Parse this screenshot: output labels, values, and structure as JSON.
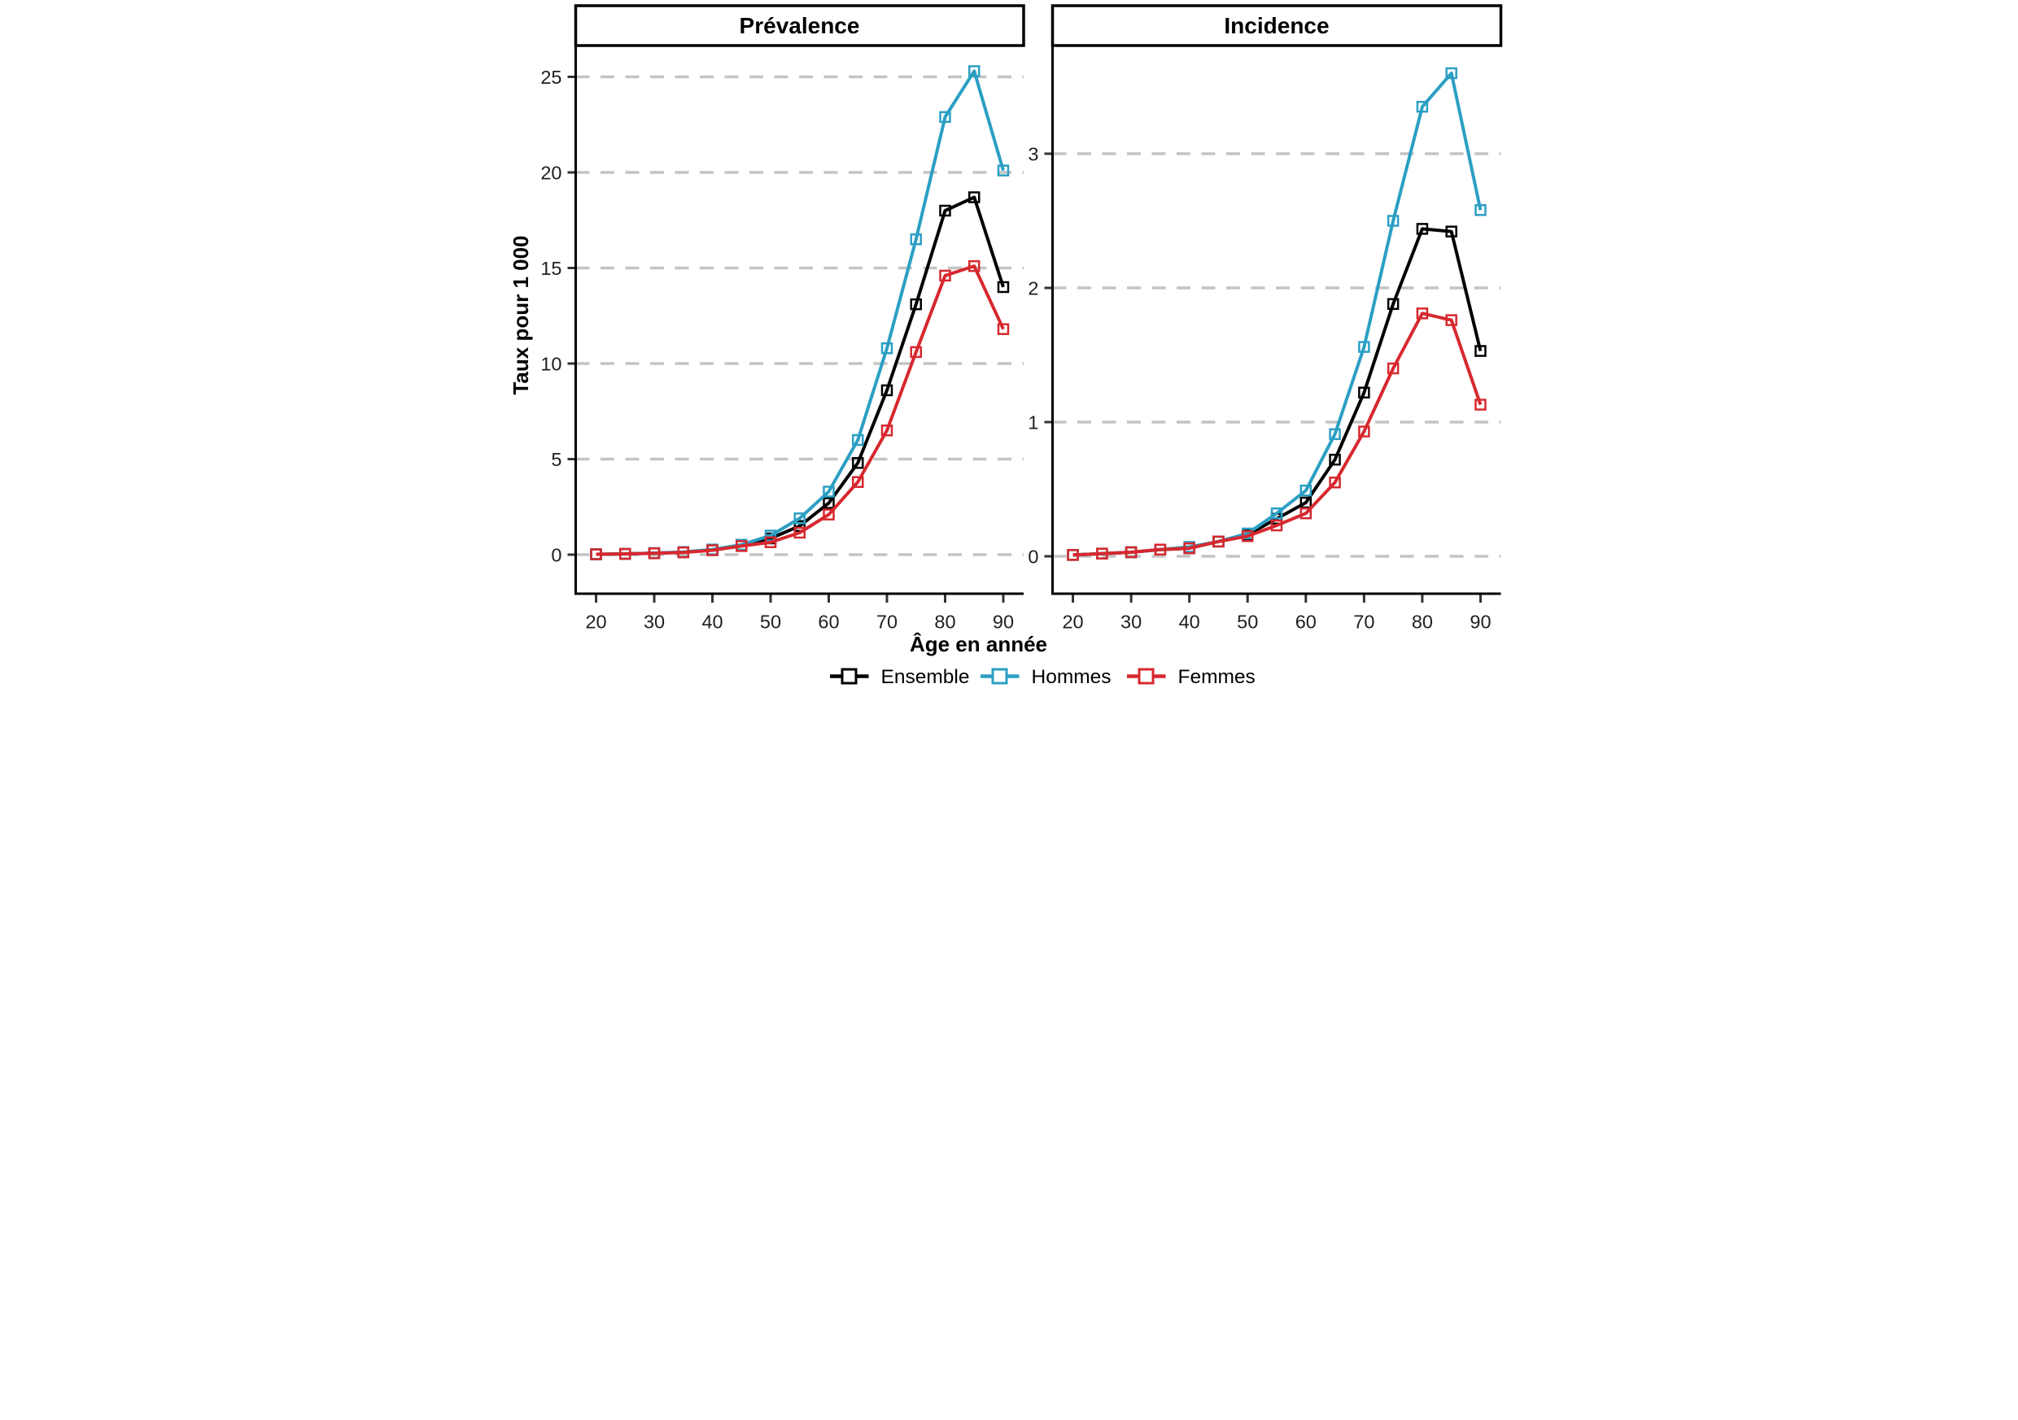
{
  "figure": {
    "background": "#ffffff",
    "gridline_color": "#c4c4c4",
    "axis_line_color": "#000000",
    "tick_color": "#333333"
  },
  "axes": {
    "x_label": "Âge en année",
    "y_label": "Taux pour 1 000",
    "x_ticks": [
      20,
      30,
      40,
      50,
      60,
      70,
      80,
      90
    ],
    "left_y_ticks": [
      0,
      5,
      10,
      15,
      20,
      25
    ],
    "right_y_ticks": [
      0,
      1,
      2,
      3
    ]
  },
  "legend": {
    "entries": [
      {
        "label": "Ensemble",
        "color": "#000000"
      },
      {
        "label": "Hommes",
        "color": "#2B9FC3"
      },
      {
        "label": "Femmes",
        "color": "#D7282E"
      }
    ]
  },
  "chart_data": [
    {
      "type": "line",
      "title": "Prévalence",
      "xlabel": "Âge en année",
      "ylabel": "Taux pour 1 000",
      "x": [
        20,
        25,
        30,
        35,
        40,
        45,
        50,
        55,
        60,
        65,
        70,
        75,
        80,
        85,
        90
      ],
      "ylim": [
        0,
        26.6
      ],
      "grid": "horizontal-dashed",
      "series": [
        {
          "name": "Ensemble",
          "color": "#000000",
          "values": [
            0.02,
            0.04,
            0.08,
            0.13,
            0.25,
            0.5,
            0.85,
            1.5,
            2.7,
            4.8,
            8.6,
            13.1,
            18.0,
            18.7,
            14.0
          ]
        },
        {
          "name": "Hommes",
          "color": "#2B9FC3",
          "values": [
            0.02,
            0.04,
            0.08,
            0.14,
            0.27,
            0.52,
            1.0,
            1.9,
            3.3,
            6.0,
            10.8,
            16.5,
            22.9,
            25.3,
            20.1
          ]
        },
        {
          "name": "Femmes",
          "color": "#D7282E",
          "values": [
            0.02,
            0.04,
            0.07,
            0.12,
            0.23,
            0.45,
            0.65,
            1.15,
            2.1,
            3.8,
            6.5,
            10.6,
            14.6,
            15.1,
            11.8
          ]
        }
      ]
    },
    {
      "type": "line",
      "title": "Incidence",
      "xlabel": "Âge en année",
      "ylabel": "Taux pour 1 000",
      "x": [
        20,
        25,
        30,
        35,
        40,
        45,
        50,
        55,
        60,
        65,
        70,
        75,
        80,
        85,
        90
      ],
      "ylim": [
        0,
        3.8
      ],
      "grid": "horizontal-dashed",
      "series": [
        {
          "name": "Ensemble",
          "color": "#000000",
          "values": [
            0.01,
            0.02,
            0.03,
            0.05,
            0.06,
            0.11,
            0.16,
            0.28,
            0.4,
            0.72,
            1.22,
            1.88,
            2.44,
            2.42,
            1.53
          ]
        },
        {
          "name": "Hommes",
          "color": "#2B9FC3",
          "values": [
            0.01,
            0.02,
            0.03,
            0.05,
            0.07,
            0.11,
            0.17,
            0.32,
            0.49,
            0.91,
            1.56,
            2.5,
            3.35,
            3.6,
            2.58
          ]
        },
        {
          "name": "Femmes",
          "color": "#D7282E",
          "values": [
            0.01,
            0.02,
            0.03,
            0.05,
            0.06,
            0.11,
            0.15,
            0.23,
            0.32,
            0.55,
            0.93,
            1.4,
            1.81,
            1.76,
            1.13
          ]
        }
      ]
    }
  ]
}
